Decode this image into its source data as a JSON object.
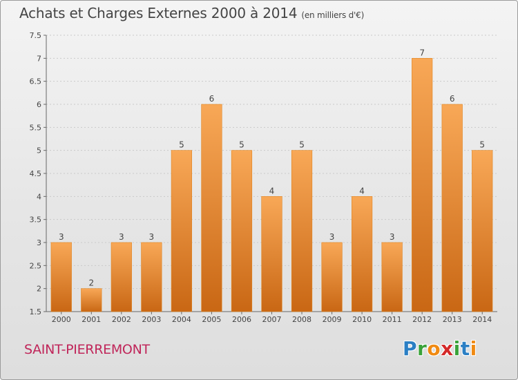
{
  "header": {
    "title": "Achats et Charges Externes 2000 à 2014",
    "unit": "(en milliers d'€)"
  },
  "footer": {
    "town": "SAINT-PIERREMONT",
    "logo_letters": [
      {
        "ch": "P",
        "color": "#2b7fc4"
      },
      {
        "ch": "r",
        "color": "#3aa23a"
      },
      {
        "ch": "o",
        "color": "#f08a12"
      },
      {
        "ch": "x",
        "color": "#d42a2a"
      },
      {
        "ch": "i",
        "color": "#3aa23a"
      },
      {
        "ch": "t",
        "color": "#2b7fc4"
      },
      {
        "ch": "i",
        "color": "#f08a12"
      }
    ]
  },
  "chart_data": {
    "type": "bar",
    "title": "Achats et Charges Externes 2000 à 2014",
    "subtitle": "(en milliers d'€)",
    "xlabel": "",
    "ylabel": "",
    "categories": [
      "2000",
      "2001",
      "2002",
      "2003",
      "2004",
      "2005",
      "2006",
      "2007",
      "2008",
      "2009",
      "2010",
      "2011",
      "2012",
      "2013",
      "2014"
    ],
    "values": [
      3,
      2,
      3,
      3,
      5,
      6,
      5,
      4,
      5,
      3,
      4,
      3,
      7,
      6,
      5
    ],
    "data_labels": [
      "3",
      "2",
      "3",
      "3",
      "5",
      "6",
      "5",
      "4",
      "5",
      "3",
      "4",
      "3",
      "7",
      "6",
      "5"
    ],
    "ylim": [
      1.5,
      7.5
    ],
    "yticks": [
      "1.5",
      "2",
      "2.5",
      "3",
      "3.5",
      "4",
      "4.5",
      "5",
      "5.5",
      "6",
      "6.5",
      "7",
      "7.5"
    ],
    "grid": true,
    "legend": "none",
    "colors": {
      "bar_light": "#f8a857",
      "bar_dark": "#c96714",
      "bar_edge": "#e0841f"
    }
  }
}
